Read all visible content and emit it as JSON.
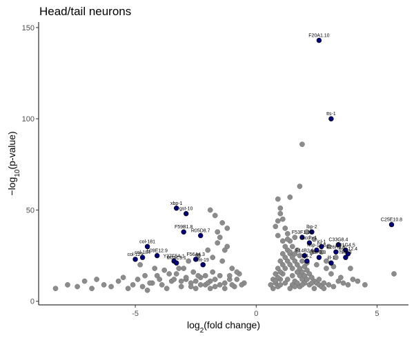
{
  "chart_data": {
    "type": "scatter",
    "title": "Head/tail neurons",
    "xlabel": "log2(fold change)",
    "ylabel": "-log10(p-value)",
    "xlim": [
      -9,
      6.3
    ],
    "ylim": [
      -2,
      153
    ],
    "x_ticks": [
      -5,
      0,
      5
    ],
    "y_ticks": [
      0,
      50,
      100,
      150
    ],
    "grid": false,
    "colors": {
      "background": "#8c8c8c",
      "highlight": "#00007a",
      "outline": "#000000",
      "axis": "#000000"
    },
    "background_points": [
      [
        -8.3,
        7
      ],
      [
        -7.8,
        9
      ],
      [
        -7.4,
        8
      ],
      [
        -7.1,
        11
      ],
      [
        -6.8,
        7
      ],
      [
        -6.6,
        12
      ],
      [
        -6.3,
        9
      ],
      [
        -6.0,
        8
      ],
      [
        -5.7,
        11
      ],
      [
        -5.5,
        13
      ],
      [
        -5.3,
        7
      ],
      [
        -5.1,
        9
      ],
      [
        -4.9,
        12
      ],
      [
        -4.7,
        8
      ],
      [
        -4.5,
        6
      ],
      [
        -4.3,
        10
      ],
      [
        -4.1,
        14
      ],
      [
        -3.9,
        9
      ],
      [
        -3.7,
        7
      ],
      [
        -3.5,
        11
      ],
      [
        -3.3,
        15
      ],
      [
        -3.1,
        8
      ],
      [
        -2.9,
        12
      ],
      [
        -2.7,
        10
      ],
      [
        -2.5,
        7
      ],
      [
        -2.3,
        13
      ],
      [
        -2.1,
        9
      ],
      [
        -1.9,
        11
      ],
      [
        -1.7,
        8
      ],
      [
        -1.5,
        14
      ],
      [
        -1.3,
        10
      ],
      [
        -1.1,
        12
      ],
      [
        -0.9,
        8
      ],
      [
        -0.7,
        15
      ],
      [
        -0.5,
        10
      ],
      [
        -3.0,
        18
      ],
      [
        -2.8,
        22
      ],
      [
        -2.4,
        25
      ],
      [
        -2.2,
        20
      ],
      [
        -2.0,
        28
      ],
      [
        -1.8,
        24
      ],
      [
        -1.6,
        32
      ],
      [
        -1.4,
        22
      ],
      [
        -1.2,
        30
      ],
      [
        -1.0,
        18
      ],
      [
        -1.5,
        35
      ],
      [
        -1.2,
        40
      ],
      [
        -1.9,
        50
      ],
      [
        -1.7,
        47
      ],
      [
        -1.4,
        43
      ],
      [
        -1.6,
        38
      ],
      [
        -1.3,
        28
      ],
      [
        -2.6,
        16
      ],
      [
        -2.9,
        13
      ],
      [
        -3.2,
        18
      ],
      [
        -3.4,
        12
      ],
      [
        -3.6,
        15
      ],
      [
        -3.8,
        17
      ],
      [
        -4.0,
        12
      ],
      [
        -4.2,
        18
      ],
      [
        -4.4,
        10
      ],
      [
        -4.6,
        14
      ],
      [
        -4.8,
        20
      ],
      [
        -2.0,
        10
      ],
      [
        -1.8,
        16
      ],
      [
        -1.1,
        14
      ],
      [
        -0.8,
        12
      ],
      [
        -0.6,
        9
      ],
      [
        -2.5,
        11
      ],
      [
        -2.3,
        9
      ],
      [
        -2.1,
        14
      ],
      [
        -1.9,
        7
      ],
      [
        -1.7,
        12
      ],
      [
        -1.5,
        9
      ],
      [
        -1.3,
        7
      ],
      [
        -1.0,
        9
      ],
      [
        -0.8,
        16
      ],
      [
        -3.1,
        11
      ],
      [
        -2.7,
        8
      ],
      [
        -2.4,
        14
      ],
      [
        0.9,
        8
      ],
      [
        1.0,
        12
      ],
      [
        1.1,
        15
      ],
      [
        1.2,
        18
      ],
      [
        1.3,
        22
      ],
      [
        1.4,
        26
      ],
      [
        1.5,
        30
      ],
      [
        1.6,
        35
      ],
      [
        1.2,
        40
      ],
      [
        1.1,
        45
      ],
      [
        1.0,
        48
      ],
      [
        0.9,
        44
      ],
      [
        0.8,
        41
      ],
      [
        1.3,
        37
      ],
      [
        1.4,
        33
      ],
      [
        1.7,
        28
      ],
      [
        1.8,
        25
      ],
      [
        1.9,
        22
      ],
      [
        2.0,
        19
      ],
      [
        2.1,
        17
      ],
      [
        2.2,
        15
      ],
      [
        2.3,
        13
      ],
      [
        2.4,
        11
      ],
      [
        2.5,
        10
      ],
      [
        2.6,
        9
      ],
      [
        2.7,
        8
      ],
      [
        2.8,
        7
      ],
      [
        0.8,
        10
      ],
      [
        0.9,
        13
      ],
      [
        1.0,
        16
      ],
      [
        1.1,
        20
      ],
      [
        1.2,
        24
      ],
      [
        1.3,
        28
      ],
      [
        1.4,
        20
      ],
      [
        1.5,
        18
      ],
      [
        1.6,
        22
      ],
      [
        1.7,
        16
      ],
      [
        1.8,
        14
      ],
      [
        1.9,
        12
      ],
      [
        0.7,
        7
      ],
      [
        1.5,
        9
      ],
      [
        1.6,
        11
      ],
      [
        1.8,
        8
      ],
      [
        2.0,
        10
      ],
      [
        2.2,
        9
      ],
      [
        2.4,
        7
      ],
      [
        2.6,
        12
      ],
      [
        2.8,
        10
      ],
      [
        3.0,
        9
      ],
      [
        3.2,
        8
      ],
      [
        3.4,
        11
      ],
      [
        3.6,
        10
      ],
      [
        3.8,
        9
      ],
      [
        4.0,
        12
      ],
      [
        0.6,
        9
      ],
      [
        0.7,
        12
      ],
      [
        0.8,
        15
      ],
      [
        0.9,
        18
      ],
      [
        1.0,
        22
      ],
      [
        1.1,
        26
      ],
      [
        1.2,
        30
      ],
      [
        1.3,
        34
      ],
      [
        1.4,
        27
      ],
      [
        1.5,
        24
      ],
      [
        1.6,
        26
      ],
      [
        1.7,
        20
      ],
      [
        1.8,
        18
      ],
      [
        1.9,
        16
      ],
      [
        2.0,
        14
      ],
      [
        2.1,
        12
      ],
      [
        2.3,
        10
      ],
      [
        1.3,
        12
      ],
      [
        1.5,
        14
      ],
      [
        1.7,
        10
      ],
      [
        1.9,
        9
      ],
      [
        0.9,
        56
      ],
      [
        1.0,
        51
      ],
      [
        2.1,
        38
      ],
      [
        2.4,
        34
      ],
      [
        3.0,
        30
      ],
      [
        2.7,
        27
      ],
      [
        3.3,
        24
      ],
      [
        2.5,
        20
      ],
      [
        2.9,
        18
      ],
      [
        3.1,
        15
      ],
      [
        3.5,
        13
      ],
      [
        3.9,
        18
      ],
      [
        4.2,
        11
      ],
      [
        4.5,
        9
      ],
      [
        1.8,
        63
      ],
      [
        1.9,
        86
      ],
      [
        1.4,
        57
      ],
      [
        5.7,
        15
      ],
      [
        2.9,
        22
      ],
      [
        3.2,
        19
      ],
      [
        0.8,
        11
      ],
      [
        1.6,
        8
      ],
      [
        1.0,
        9
      ],
      [
        1.2,
        10
      ],
      [
        1.4,
        7
      ],
      [
        2.1,
        21
      ],
      [
        2.3,
        27
      ],
      [
        1.1,
        33
      ],
      [
        0.9,
        36
      ]
    ],
    "highlighted_points": [
      {
        "label": "F20A1.10",
        "x": 2.6,
        "y": 143
      },
      {
        "label": "tts-1",
        "x": 3.1,
        "y": 100
      },
      {
        "label": "xbp-1",
        "x": -3.3,
        "y": 51
      },
      {
        "label": "gst-10",
        "x": -2.9,
        "y": 48
      },
      {
        "label": "F59B1.8",
        "x": -3.0,
        "y": 38
      },
      {
        "label": "R05D8.7",
        "x": -2.3,
        "y": 36
      },
      {
        "label": "col-181",
        "x": -4.5,
        "y": 30
      },
      {
        "label": "F09E12.9",
        "x": -4.1,
        "y": 25
      },
      {
        "label": "col-129",
        "x": -5.0,
        "y": 23
      },
      {
        "label": "col-184",
        "x": -4.7,
        "y": 24
      },
      {
        "label": "Y37F5A.1",
        "x": -3.4,
        "y": 22
      },
      {
        "label": "M04C9.1",
        "x": -3.3,
        "y": 21
      },
      {
        "label": "F56A4.3",
        "x": -2.5,
        "y": 23
      },
      {
        "label": "ifit-19",
        "x": -2.2,
        "y": 20
      },
      {
        "label": "C25E10.8",
        "x": 5.6,
        "y": 42
      },
      {
        "label": "lbp-2",
        "x": 2.3,
        "y": 38
      },
      {
        "label": "F53F1.13",
        "x": 1.9,
        "y": 35
      },
      {
        "label": "C33G8.4",
        "x": 3.4,
        "y": 31
      },
      {
        "label": "acdh-1",
        "x": 2.2,
        "y": 32
      },
      {
        "label": "icl-1",
        "x": 2.7,
        "y": 30
      },
      {
        "label": "hsp-12.6",
        "x": 2.5,
        "y": 28
      },
      {
        "label": "E01G4.5",
        "x": 3.7,
        "y": 28
      },
      {
        "label": "F26H9.8",
        "x": 3.3,
        "y": 27
      },
      {
        "label": "hsp-12.4",
        "x": 3.8,
        "y": 26
      },
      {
        "label": "F14B2.6",
        "x": 2.0,
        "y": 25
      },
      {
        "label": "lipl-2",
        "x": 2.1,
        "y": 22
      },
      {
        "label": "fat-3.3",
        "x": 2.6,
        "y": 24
      },
      {
        "label": "ilf-1",
        "x": 3.1,
        "y": 21
      },
      {
        "label": "hke-3",
        "x": 3.7,
        "y": 24
      }
    ]
  }
}
